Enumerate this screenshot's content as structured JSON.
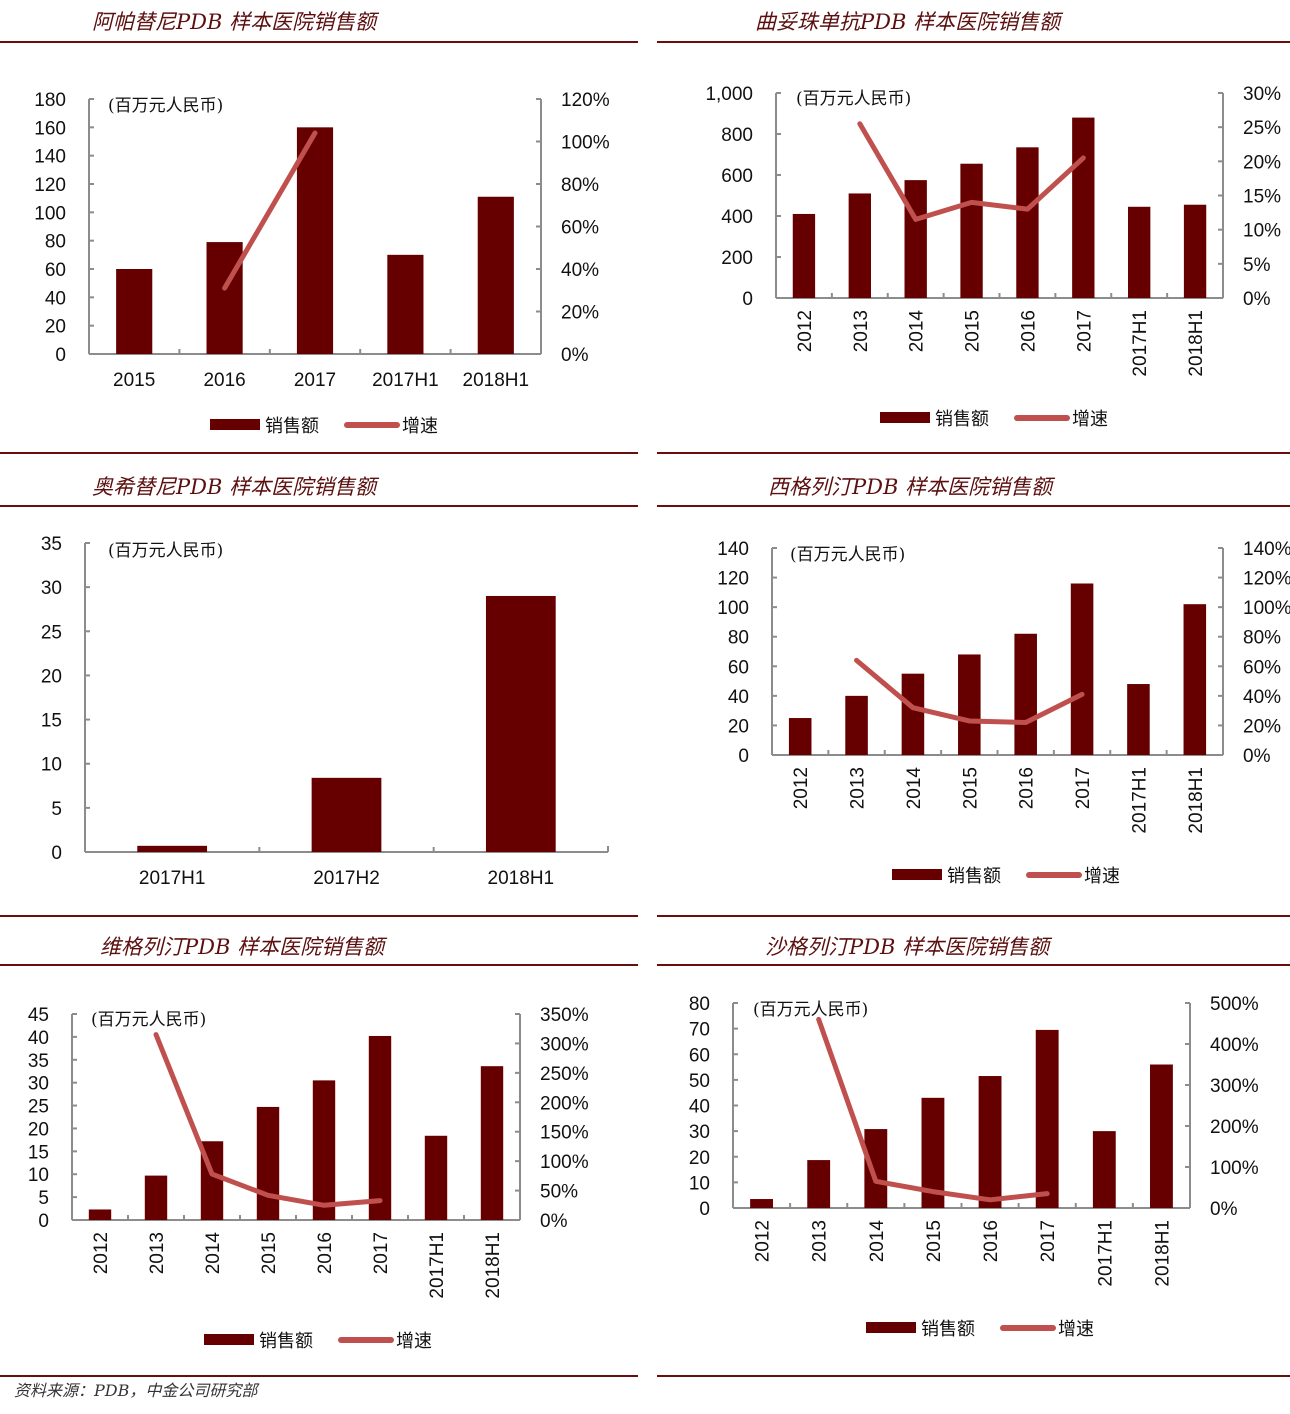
{
  "colors": {
    "bar": "#660000",
    "line": "#c0504d",
    "rule": "#6b0d0d",
    "axis": "#8c8c8c",
    "title": "#5c0f0f"
  },
  "source_note": "资料来源：PDB，中金公司研究部",
  "legend": {
    "bar_label": "销售额",
    "line_label": "增速"
  },
  "chart_data": [
    {
      "type": "bar",
      "title": "阿帕替尼PDB 样本医院销售额",
      "unit_label": "(百万元人民币)",
      "categories": [
        "2015",
        "2016",
        "2017",
        "2017H1",
        "2018H1"
      ],
      "series": [
        {
          "name": "销售额",
          "type": "bar",
          "axis": "left",
          "values": [
            60,
            79,
            160,
            70,
            111
          ]
        },
        {
          "name": "增速",
          "type": "line",
          "axis": "right",
          "values": [
            null,
            0.31,
            1.04,
            null,
            null
          ]
        }
      ],
      "ylim": [
        0,
        180
      ],
      "yticks": [
        "0",
        "20",
        "40",
        "60",
        "80",
        "100",
        "120",
        "140",
        "160",
        "180"
      ],
      "y2lim": [
        0,
        1.2
      ],
      "y2ticks": [
        "0%",
        "20%",
        "40%",
        "60%",
        "80%",
        "100%",
        "120%"
      ],
      "xlabel_rotation": "horizontal",
      "legend": "bottom",
      "grid": false
    },
    {
      "type": "bar",
      "title": "曲妥珠单抗PDB 样本医院销售额",
      "unit_label": "(百万元人民币)",
      "categories": [
        "2012",
        "2013",
        "2014",
        "2015",
        "2016",
        "2017",
        "2017H1",
        "2018H1"
      ],
      "series": [
        {
          "name": "销售额",
          "type": "bar",
          "axis": "left",
          "values": [
            410,
            510,
            575,
            655,
            735,
            880,
            445,
            455
          ]
        },
        {
          "name": "增速",
          "type": "line",
          "axis": "right",
          "values": [
            null,
            0.255,
            0.115,
            0.14,
            0.13,
            0.205,
            null,
            null
          ]
        }
      ],
      "ylim": [
        0,
        1000
      ],
      "yticks": [
        "0",
        "200",
        "400",
        "600",
        "800",
        "1,000"
      ],
      "y2lim": [
        0,
        0.3
      ],
      "y2ticks": [
        "0%",
        "5%",
        "10%",
        "15%",
        "20%",
        "25%",
        "30%"
      ],
      "xlabel_rotation": "vertical",
      "legend": "bottom",
      "grid": false
    },
    {
      "type": "bar",
      "title": "奥希替尼PDB 样本医院销售额",
      "unit_label": "(百万元人民币)",
      "categories": [
        "2017H1",
        "2017H2",
        "2018H1"
      ],
      "series": [
        {
          "name": "销售额",
          "type": "bar",
          "axis": "left",
          "values": [
            0.7,
            8.4,
            29
          ]
        }
      ],
      "ylim": [
        0,
        35
      ],
      "yticks": [
        "0",
        "5",
        "10",
        "15",
        "20",
        "25",
        "30",
        "35"
      ],
      "xlabel_rotation": "horizontal",
      "legend": "none",
      "grid": false
    },
    {
      "type": "bar",
      "title": "西格列汀PDB 样本医院销售额",
      "unit_label": "(百万元人民币)",
      "categories": [
        "2012",
        "2013",
        "2014",
        "2015",
        "2016",
        "2017",
        "2017H1",
        "2018H1"
      ],
      "series": [
        {
          "name": "销售额",
          "type": "bar",
          "axis": "left",
          "values": [
            25,
            40,
            55,
            68,
            82,
            116,
            48,
            102
          ]
        },
        {
          "name": "增速",
          "type": "line",
          "axis": "right",
          "values": [
            null,
            0.64,
            0.32,
            0.23,
            0.22,
            0.41,
            null,
            null
          ]
        }
      ],
      "ylim": [
        0,
        140
      ],
      "yticks": [
        "0",
        "20",
        "40",
        "60",
        "80",
        "100",
        "120",
        "140"
      ],
      "y2lim": [
        0,
        1.4
      ],
      "y2ticks": [
        "0%",
        "20%",
        "40%",
        "60%",
        "80%",
        "100%",
        "120%",
        "140%"
      ],
      "xlabel_rotation": "vertical",
      "legend": "bottom",
      "grid": false
    },
    {
      "type": "bar",
      "title": "维格列汀PDB 样本医院销售额",
      "unit_label": "(百万元人民币)",
      "categories": [
        "2012",
        "2013",
        "2014",
        "2015",
        "2016",
        "2017",
        "2017H1",
        "2018H1"
      ],
      "series": [
        {
          "name": "销售额",
          "type": "bar",
          "axis": "left",
          "values": [
            2.3,
            9.7,
            17.2,
            24.7,
            30.5,
            40.2,
            18.4,
            33.6
          ]
        },
        {
          "name": "增速",
          "type": "line",
          "axis": "right",
          "values": [
            null,
            3.15,
            0.78,
            0.42,
            0.25,
            0.33,
            null,
            null
          ]
        }
      ],
      "ylim": [
        0,
        45
      ],
      "yticks": [
        "0",
        "5",
        "10",
        "15",
        "20",
        "25",
        "30",
        "35",
        "40",
        "45"
      ],
      "y2lim": [
        0,
        3.5
      ],
      "y2ticks": [
        "0%",
        "50%",
        "100%",
        "150%",
        "200%",
        "250%",
        "300%",
        "350%"
      ],
      "xlabel_rotation": "vertical",
      "legend": "bottom",
      "grid": false
    },
    {
      "type": "bar",
      "title": "沙格列汀PDB 样本医院销售额",
      "unit_label": "(百万元人民币)",
      "categories": [
        "2012",
        "2013",
        "2014",
        "2015",
        "2016",
        "2017",
        "2017H1",
        "2018H1"
      ],
      "series": [
        {
          "name": "销售额",
          "type": "bar",
          "axis": "left",
          "values": [
            3.5,
            18.7,
            30.8,
            43,
            51.5,
            69.5,
            30,
            56
          ]
        },
        {
          "name": "增速",
          "type": "line",
          "axis": "right",
          "values": [
            null,
            4.6,
            0.65,
            0.4,
            0.2,
            0.35,
            null,
            null
          ]
        }
      ],
      "ylim": [
        0,
        80
      ],
      "yticks": [
        "0",
        "10",
        "20",
        "30",
        "40",
        "50",
        "60",
        "70",
        "80"
      ],
      "y2lim": [
        0,
        5
      ],
      "y2ticks": [
        "0%",
        "100%",
        "200%",
        "300%",
        "400%",
        "500%"
      ],
      "xlabel_rotation": "vertical",
      "legend": "bottom",
      "grid": false
    }
  ]
}
